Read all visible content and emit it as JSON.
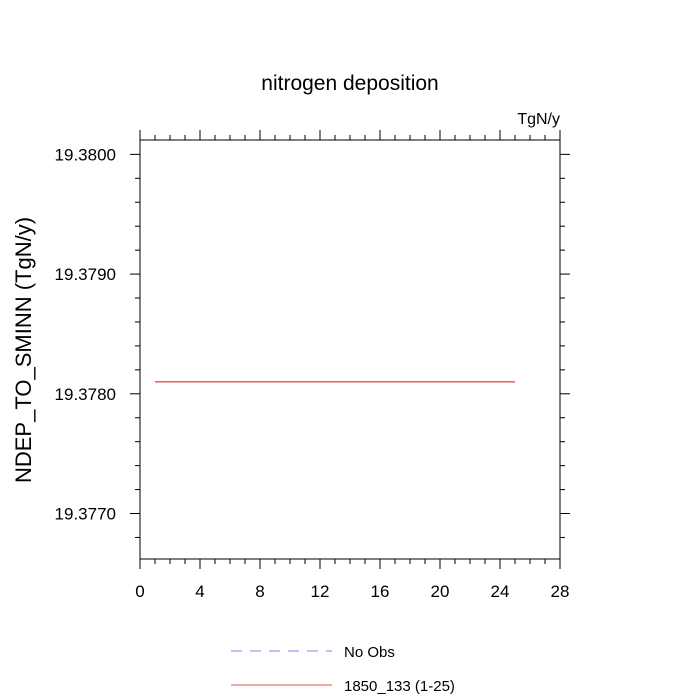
{
  "chart_data": {
    "type": "line",
    "title": "nitrogen deposition",
    "units_label": "TgN/y",
    "ylabel": "NDEP_TO_SMINN  (TgN/y)",
    "xlabel": "",
    "xlim": [
      0,
      28
    ],
    "ylim": [
      19.37662,
      19.38012
    ],
    "x_ticks": [
      0,
      4,
      8,
      12,
      16,
      20,
      24,
      28
    ],
    "x_tick_labels": [
      "0",
      "4",
      "8",
      "12",
      "16",
      "20",
      "24",
      "28"
    ],
    "y_ticks": [
      19.377,
      19.378,
      19.379,
      19.38
    ],
    "y_tick_labels": [
      "19.3770",
      "19.3780",
      "19.3790",
      "19.3800"
    ],
    "series": [
      {
        "name": "1850_133 (1-25)",
        "color": "#e05050",
        "dash": "solid",
        "x": [
          1,
          25
        ],
        "y": [
          19.3781,
          19.3781
        ]
      }
    ],
    "legend": [
      {
        "label": "No Obs",
        "color": "#8080f0",
        "dash": "dashed"
      },
      {
        "label": "1850_133 (1-25)",
        "color": "#e05050",
        "dash": "solid"
      }
    ],
    "legend_placement": "bottom",
    "grid": false
  }
}
